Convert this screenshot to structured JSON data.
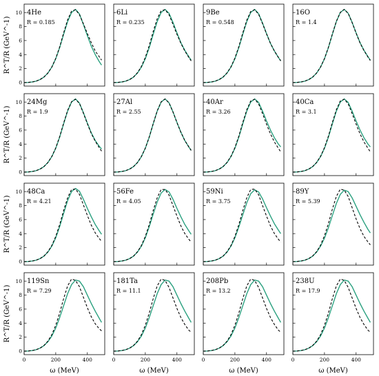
{
  "figure": {
    "xlabel": "ω (MeV)",
    "ylabel": "R^T/R (GeV^-1)"
  },
  "chart_data": {
    "type": "line",
    "rows": 4,
    "cols": 4,
    "xlim": [
      0,
      510
    ],
    "ylim": [
      -0.5,
      11.2
    ],
    "xticks": [
      0,
      200,
      400
    ],
    "yticks": [
      0,
      2,
      4,
      6,
      8,
      10
    ],
    "xlabel": "ω (MeV)",
    "ylabel": "R^T/R (GeV^-1)",
    "grid": false,
    "colors": {
      "solid": "#2aa07f",
      "dashed": "#000000"
    },
    "x": [
      0,
      25,
      50,
      75,
      100,
      125,
      150,
      175,
      200,
      225,
      250,
      275,
      300,
      325,
      350,
      375,
      400,
      425,
      450,
      475,
      490
    ],
    "panels": [
      {
        "nucleus": "4He",
        "R_label": "R = 0.185",
        "series": [
          {
            "style": "solid",
            "values": [
              0,
              0.02,
              0.08,
              0.2,
              0.42,
              0.78,
              1.35,
              2.2,
              3.4,
              5.0,
              6.9,
              8.7,
              10.0,
              10.45,
              9.8,
              8.3,
              6.7,
              5.2,
              4.0,
              3.0,
              2.5
            ]
          },
          {
            "style": "dashed",
            "values": [
              0,
              0.02,
              0.08,
              0.2,
              0.42,
              0.78,
              1.35,
              2.2,
              3.45,
              5.1,
              7.1,
              8.95,
              10.2,
              10.4,
              9.7,
              8.4,
              7.0,
              5.7,
              4.5,
              3.7,
              3.2
            ]
          }
        ]
      },
      {
        "nucleus": "6Li",
        "R_label": "R = 0.235",
        "series": [
          {
            "style": "solid",
            "values": [
              0,
              0.02,
              0.08,
              0.2,
              0.42,
              0.78,
              1.35,
              2.2,
              3.4,
              5.0,
              6.9,
              8.7,
              10.0,
              10.45,
              9.9,
              8.6,
              7.1,
              5.7,
              4.6,
              3.7,
              3.2
            ]
          },
          {
            "style": "dashed",
            "values": [
              0,
              0.02,
              0.08,
              0.2,
              0.42,
              0.78,
              1.4,
              2.3,
              3.6,
              5.3,
              7.3,
              9.1,
              10.25,
              10.4,
              9.7,
              8.3,
              6.9,
              5.6,
              4.5,
              3.6,
              3.1
            ]
          }
        ]
      },
      {
        "nucleus": "9Be",
        "R_label": "R = 0.548",
        "series": [
          {
            "style": "solid",
            "values": [
              0,
              0.02,
              0.08,
              0.2,
              0.42,
              0.78,
              1.35,
              2.2,
              3.4,
              5.0,
              6.9,
              8.7,
              10.0,
              10.45,
              9.85,
              8.5,
              7.0,
              5.6,
              4.5,
              3.6,
              3.1
            ]
          },
          {
            "style": "dashed",
            "values": [
              0,
              0.02,
              0.08,
              0.2,
              0.42,
              0.78,
              1.38,
              2.25,
              3.5,
              5.15,
              7.1,
              8.9,
              10.15,
              10.4,
              9.75,
              8.4,
              6.95,
              5.6,
              4.5,
              3.6,
              3.1
            ]
          }
        ]
      },
      {
        "nucleus": "16O",
        "R_label": "R = 1.4",
        "series": [
          {
            "style": "solid",
            "values": [
              0,
              0.02,
              0.08,
              0.2,
              0.42,
              0.78,
              1.35,
              2.2,
              3.4,
              5.0,
              6.9,
              8.7,
              10.0,
              10.45,
              9.9,
              8.6,
              7.1,
              5.7,
              4.6,
              3.7,
              3.2
            ]
          },
          {
            "style": "dashed",
            "values": [
              0,
              0.02,
              0.08,
              0.2,
              0.42,
              0.78,
              1.36,
              2.22,
              3.42,
              5.05,
              6.95,
              8.75,
              10.02,
              10.45,
              9.88,
              8.55,
              7.05,
              5.65,
              4.55,
              3.65,
              3.15
            ]
          }
        ]
      },
      {
        "nucleus": "24Mg",
        "R_label": "R = 1.9",
        "series": [
          {
            "style": "solid",
            "values": [
              0,
              0.02,
              0.08,
              0.2,
              0.42,
              0.78,
              1.35,
              2.2,
              3.4,
              5.0,
              6.9,
              8.7,
              10.0,
              10.45,
              9.85,
              8.5,
              7.0,
              5.6,
              4.5,
              3.7,
              3.3
            ]
          },
          {
            "style": "dashed",
            "values": [
              0,
              0.02,
              0.08,
              0.2,
              0.42,
              0.78,
              1.36,
              2.22,
              3.45,
              5.08,
              7.0,
              8.8,
              10.05,
              10.4,
              9.8,
              8.4,
              6.9,
              5.5,
              4.4,
              3.5,
              3.0
            ]
          }
        ]
      },
      {
        "nucleus": "27Al",
        "R_label": "R = 2.55",
        "series": [
          {
            "style": "solid",
            "values": [
              0,
              0.02,
              0.08,
              0.2,
              0.42,
              0.78,
              1.35,
              2.2,
              3.4,
              5.0,
              6.9,
              8.7,
              10.0,
              10.45,
              9.9,
              8.6,
              7.1,
              5.7,
              4.5,
              3.6,
              3.1
            ]
          },
          {
            "style": "dashed",
            "values": [
              0,
              0.02,
              0.08,
              0.2,
              0.42,
              0.78,
              1.36,
              2.22,
              3.42,
              5.03,
              6.93,
              8.73,
              10.02,
              10.44,
              9.88,
              8.58,
              7.08,
              5.68,
              4.5,
              3.6,
              3.1
            ]
          }
        ]
      },
      {
        "nucleus": "40Ar",
        "R_label": "R = 3.26",
        "series": [
          {
            "style": "solid",
            "values": [
              0,
              0.02,
              0.08,
              0.2,
              0.42,
              0.78,
              1.35,
              2.2,
              3.4,
              5.0,
              6.9,
              8.7,
              10.0,
              10.45,
              9.95,
              8.7,
              7.3,
              6.0,
              4.9,
              4.0,
              3.6
            ]
          },
          {
            "style": "dashed",
            "values": [
              0,
              0.02,
              0.08,
              0.2,
              0.42,
              0.78,
              1.38,
              2.25,
              3.5,
              5.15,
              7.1,
              8.9,
              10.15,
              10.4,
              9.75,
              8.35,
              6.85,
              5.45,
              4.3,
              3.4,
              2.9
            ]
          }
        ]
      },
      {
        "nucleus": "40Ca",
        "R_label": "R = 3.1",
        "series": [
          {
            "style": "solid",
            "values": [
              0,
              0.02,
              0.08,
              0.2,
              0.42,
              0.78,
              1.35,
              2.2,
              3.4,
              5.0,
              6.9,
              8.7,
              10.0,
              10.45,
              9.95,
              8.7,
              7.3,
              6.0,
              4.9,
              4.0,
              3.6
            ]
          },
          {
            "style": "dashed",
            "values": [
              0,
              0.02,
              0.08,
              0.2,
              0.42,
              0.78,
              1.38,
              2.25,
              3.5,
              5.15,
              7.1,
              8.9,
              10.15,
              10.4,
              9.75,
              8.35,
              6.85,
              5.45,
              4.3,
              3.4,
              2.9
            ]
          }
        ]
      },
      {
        "nucleus": "48Ca",
        "R_label": "R = 4.21",
        "series": [
          {
            "style": "solid",
            "values": [
              0,
              0.02,
              0.08,
              0.2,
              0.42,
              0.78,
              1.35,
              2.2,
              3.4,
              5.0,
              6.9,
              8.7,
              10.0,
              10.45,
              10.05,
              8.9,
              7.6,
              6.4,
              5.3,
              4.4,
              3.9
            ]
          },
          {
            "style": "dashed",
            "values": [
              0,
              0.02,
              0.08,
              0.2,
              0.42,
              0.78,
              1.4,
              2.3,
              3.6,
              5.3,
              7.3,
              9.1,
              10.3,
              10.35,
              9.6,
              8.1,
              6.6,
              5.2,
              4.1,
              3.3,
              2.9
            ]
          }
        ]
      },
      {
        "nucleus": "56Fe",
        "R_label": "R = 4.05",
        "series": [
          {
            "style": "solid",
            "values": [
              0,
              0.02,
              0.08,
              0.2,
              0.42,
              0.78,
              1.35,
              2.2,
              3.4,
              5.0,
              6.8,
              8.5,
              9.8,
              10.3,
              9.95,
              8.9,
              7.6,
              6.4,
              5.3,
              4.4,
              3.9
            ]
          },
          {
            "style": "dashed",
            "values": [
              0,
              0.02,
              0.08,
              0.2,
              0.42,
              0.78,
              1.4,
              2.3,
              3.6,
              5.3,
              7.3,
              9.1,
              10.3,
              10.3,
              9.5,
              8.0,
              6.5,
              5.1,
              4.0,
              3.2,
              2.8
            ]
          }
        ]
      },
      {
        "nucleus": "59Ni",
        "R_label": "R = 3.75",
        "series": [
          {
            "style": "solid",
            "values": [
              0,
              0.02,
              0.08,
              0.2,
              0.42,
              0.78,
              1.35,
              2.2,
              3.4,
              4.95,
              6.7,
              8.4,
              9.7,
              10.25,
              9.95,
              8.95,
              7.7,
              6.5,
              5.4,
              4.5,
              4.0
            ]
          },
          {
            "style": "dashed",
            "values": [
              0,
              0.02,
              0.08,
              0.2,
              0.42,
              0.78,
              1.4,
              2.3,
              3.6,
              5.3,
              7.3,
              9.1,
              10.3,
              10.35,
              9.55,
              8.0,
              6.5,
              5.1,
              4.0,
              3.2,
              2.8
            ]
          }
        ]
      },
      {
        "nucleus": "89Y",
        "R_label": "R = 5.39",
        "series": [
          {
            "style": "solid",
            "values": [
              0,
              0.02,
              0.08,
              0.2,
              0.42,
              0.78,
              1.35,
              2.2,
              3.35,
              4.85,
              6.6,
              8.3,
              9.6,
              10.2,
              10.0,
              9.1,
              7.9,
              6.7,
              5.6,
              4.6,
              4.1
            ]
          },
          {
            "style": "dashed",
            "values": [
              0,
              0.02,
              0.08,
              0.2,
              0.42,
              0.8,
              1.42,
              2.35,
              3.7,
              5.45,
              7.5,
              9.3,
              10.35,
              10.2,
              9.3,
              7.7,
              6.1,
              4.7,
              3.6,
              2.8,
              2.4
            ]
          }
        ]
      },
      {
        "nucleus": "119Sn",
        "R_label": "R = 7.29",
        "series": [
          {
            "style": "solid",
            "values": [
              0,
              0.02,
              0.08,
              0.2,
              0.42,
              0.78,
              1.33,
              2.15,
              3.3,
              4.8,
              6.5,
              8.2,
              9.5,
              10.15,
              10.0,
              9.2,
              8.0,
              6.8,
              5.7,
              4.7,
              4.1
            ]
          },
          {
            "style": "dashed",
            "values": [
              0,
              0.02,
              0.08,
              0.2,
              0.42,
              0.8,
              1.42,
              2.35,
              3.7,
              5.45,
              7.5,
              9.3,
              10.3,
              10.1,
              9.2,
              7.7,
              6.2,
              4.9,
              3.9,
              3.2,
              2.9
            ]
          }
        ]
      },
      {
        "nucleus": "181Ta",
        "R_label": "R = 11.1",
        "series": [
          {
            "style": "solid",
            "values": [
              0,
              0.02,
              0.08,
              0.2,
              0.42,
              0.78,
              1.33,
              2.15,
              3.3,
              4.8,
              6.5,
              8.2,
              9.5,
              10.15,
              10.0,
              9.2,
              8.0,
              6.8,
              5.7,
              4.7,
              4.1
            ]
          },
          {
            "style": "dashed",
            "values": [
              0,
              0.02,
              0.08,
              0.2,
              0.42,
              0.8,
              1.42,
              2.35,
              3.7,
              5.45,
              7.5,
              9.3,
              10.3,
              10.1,
              9.1,
              7.6,
              6.1,
              4.8,
              3.8,
              3.0,
              2.7
            ]
          }
        ]
      },
      {
        "nucleus": "208Pb",
        "R_label": "R = 13.2",
        "series": [
          {
            "style": "solid",
            "values": [
              0,
              0.02,
              0.08,
              0.2,
              0.42,
              0.78,
              1.33,
              2.15,
              3.3,
              4.8,
              6.5,
              8.2,
              9.5,
              10.15,
              10.0,
              9.2,
              8.0,
              6.8,
              5.7,
              4.7,
              4.1
            ]
          },
          {
            "style": "dashed",
            "values": [
              0,
              0.02,
              0.08,
              0.2,
              0.42,
              0.8,
              1.42,
              2.35,
              3.7,
              5.45,
              7.5,
              9.3,
              10.3,
              10.1,
              9.1,
              7.6,
              6.1,
              4.8,
              3.8,
              3.0,
              2.7
            ]
          }
        ]
      },
      {
        "nucleus": "238U",
        "R_label": "R = 17.9",
        "series": [
          {
            "style": "solid",
            "values": [
              0,
              0.02,
              0.08,
              0.2,
              0.42,
              0.78,
              1.33,
              2.15,
              3.3,
              4.8,
              6.5,
              8.2,
              9.5,
              10.15,
              10.0,
              9.2,
              8.0,
              6.8,
              5.7,
              4.7,
              4.1
            ]
          },
          {
            "style": "dashed",
            "values": [
              0,
              0.02,
              0.08,
              0.2,
              0.42,
              0.8,
              1.42,
              2.35,
              3.7,
              5.45,
              7.5,
              9.3,
              10.3,
              10.1,
              9.1,
              7.6,
              6.1,
              4.8,
              3.8,
              3.0,
              2.7
            ]
          }
        ]
      }
    ]
  }
}
